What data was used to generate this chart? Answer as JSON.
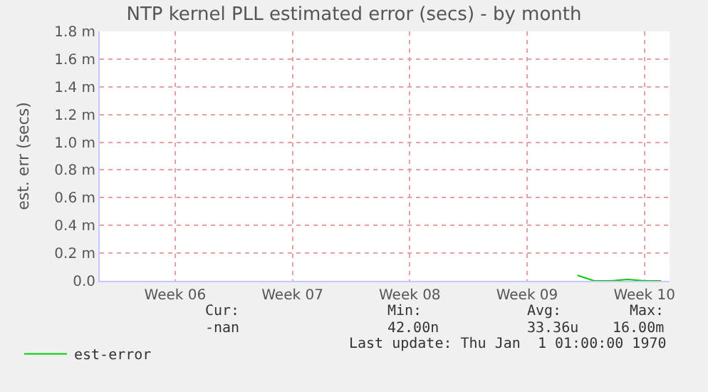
{
  "chart_data": {
    "type": "line",
    "title": "NTP kernel PLL estimated error (secs) - by month",
    "ylabel": "est. err (secs)",
    "categories": [
      null,
      null,
      null,
      null,
      "Week 06",
      null,
      null,
      null,
      null,
      null,
      null,
      "Week 07",
      null,
      null,
      null,
      null,
      null,
      null,
      "Week 08",
      null,
      null,
      null,
      null,
      null,
      null,
      "Week 09",
      null,
      null,
      null,
      null,
      null,
      null,
      "Week 10",
      null
    ],
    "series": [
      {
        "name": "est-error",
        "color": "#00cc00",
        "values": [
          null,
          null,
          null,
          null,
          null,
          null,
          null,
          null,
          null,
          null,
          null,
          null,
          null,
          null,
          null,
          null,
          null,
          null,
          null,
          null,
          null,
          null,
          null,
          null,
          null,
          null,
          null,
          null,
          0.04,
          0.0,
          0.0,
          0.01,
          0.0,
          0.0
        ]
      }
    ],
    "ylim": [
      0,
      1.8
    ],
    "yticks": [
      {
        "value": 0,
        "label": "0.0"
      },
      {
        "value": 0.2,
        "label": "0.2 m"
      },
      {
        "value": 0.4,
        "label": "0.4 m"
      },
      {
        "value": 0.6,
        "label": "0.6 m"
      },
      {
        "value": 0.8,
        "label": "0.8 m"
      },
      {
        "value": 1.0,
        "label": "1.0 m"
      },
      {
        "value": 1.2,
        "label": "1.2 m"
      },
      {
        "value": 1.4,
        "label": "1.4 m"
      },
      {
        "value": 1.6,
        "label": "1.6 m"
      },
      {
        "value": 1.8,
        "label": "1.8 m"
      }
    ],
    "grid": true,
    "legend": "bottom left",
    "annotations": [
      "Cur:",
      "Min:",
      "Avg:",
      "Max:",
      "-nan",
      "42.00n",
      "33.36u",
      "16.00m",
      "Last update: Thu Jan  1 01:00:00 1970"
    ]
  }
}
